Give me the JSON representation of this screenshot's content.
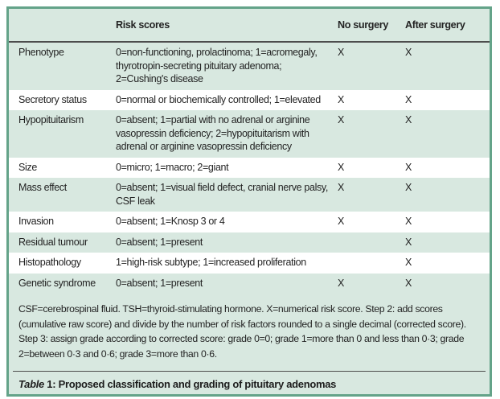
{
  "colors": {
    "table_background": "#d8e8e0",
    "frame_border": "#64a389",
    "stripe_white": "#ffffff",
    "rule_dark": "#4d4d4d",
    "text": "#232323"
  },
  "table": {
    "headers": [
      "",
      "Risk scores",
      "No surgery",
      "After surgery"
    ],
    "rows": [
      {
        "label": "Phenotype",
        "risk": "0=non-functioning, prolactinoma; 1=acromegaly, thyrotropin-secreting pituitary adenoma; 2=Cushing's disease",
        "no_surgery": "X",
        "after_surgery": "X"
      },
      {
        "label": "Secretory status",
        "risk": "0=normal or biochemically controlled; 1=elevated",
        "no_surgery": "X",
        "after_surgery": "X"
      },
      {
        "label": "Hypopituitarism",
        "risk": "0=absent; 1=partial with no adrenal or arginine vasopressin deficiency; 2=hypopituitarism with adrenal or arginine vasopressin deficiency",
        "no_surgery": "X",
        "after_surgery": "X"
      },
      {
        "label": "Size",
        "risk": "0=micro; 1=macro; 2=giant",
        "no_surgery": "X",
        "after_surgery": "X"
      },
      {
        "label": "Mass effect",
        "risk": "0=absent; 1=visual field defect, cranial nerve palsy, CSF leak",
        "no_surgery": "X",
        "after_surgery": "X"
      },
      {
        "label": "Invasion",
        "risk": "0=absent; 1=Knosp 3 or 4",
        "no_surgery": "X",
        "after_surgery": "X"
      },
      {
        "label": "Residual tumour",
        "risk": "0=absent; 1=present",
        "no_surgery": "",
        "after_surgery": "X"
      },
      {
        "label": "Histopathology",
        "risk": "1=high-risk subtype; 1=increased proliferation",
        "no_surgery": "",
        "after_surgery": "X"
      },
      {
        "label": "Genetic syndrome",
        "risk": "0=absent; 1=present",
        "no_surgery": "X",
        "after_surgery": "X"
      }
    ]
  },
  "footnote": "CSF=cerebrospinal fluid. TSH=thyroid-stimulating hormone. X=numerical risk score. Step 2: add scores (cumulative raw score) and divide by the number of risk factors rounded to a single decimal (corrected score). Step 3: assign grade according to corrected score: grade 0=0; grade 1=more than 0 and less than 0·3; grade 2=between 0·3 and 0·6; grade 3=more than 0·6.",
  "caption": {
    "table_word": "Table",
    "number": " 1: ",
    "title": "Proposed classification and grading of pituitary adenomas"
  }
}
